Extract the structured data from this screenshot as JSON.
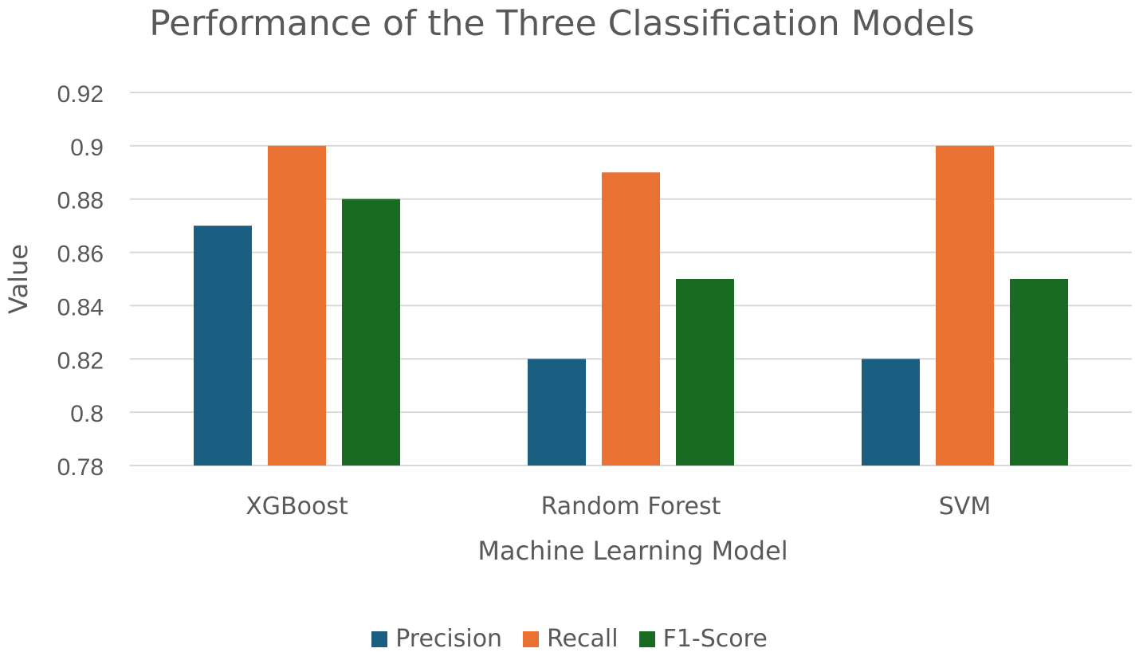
{
  "chart_data": {
    "type": "bar",
    "title": "Performance of the Three Classification Models",
    "xlabel": "Machine Learning Model",
    "ylabel": "Value",
    "categories": [
      "XGBoost",
      "Random Forest",
      "SVM"
    ],
    "series": [
      {
        "name": "Precision",
        "values": [
          0.87,
          0.82,
          0.82
        ],
        "color": "#1a5e82"
      },
      {
        "name": "Recall",
        "values": [
          0.9,
          0.89,
          0.9
        ],
        "color": "#e97132"
      },
      {
        "name": "F1-Score",
        "values": [
          0.88,
          0.85,
          0.85
        ],
        "color": "#196b24"
      }
    ],
    "ylim": [
      0.78,
      0.92
    ],
    "yticks": [
      "0.78",
      "0.8",
      "0.82",
      "0.84",
      "0.86",
      "0.88",
      "0.9",
      "0.92"
    ],
    "grid": true,
    "legend_position": "bottom",
    "gridline_color": "#d9d9d9",
    "text_color": "#595959"
  }
}
